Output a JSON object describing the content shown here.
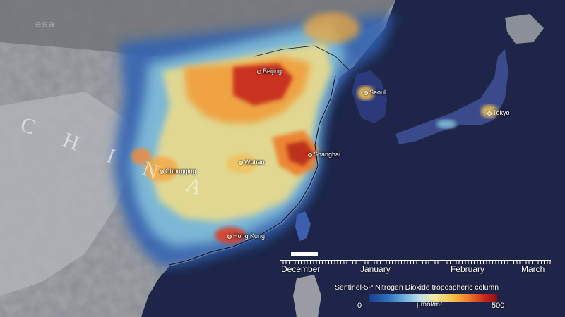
{
  "map": {
    "watermark": "esa",
    "country_label": "CHINA",
    "cities": [
      {
        "name": "Beijing"
      },
      {
        "name": "Seoul"
      },
      {
        "name": "Tokyo"
      },
      {
        "name": "Shanghai"
      },
      {
        "name": "Wuhan"
      },
      {
        "name": "Chongqing"
      },
      {
        "name": "Hong Kong"
      }
    ]
  },
  "timeline": {
    "months": [
      "December",
      "January",
      "February",
      "March"
    ],
    "progress": 0.1
  },
  "legend": {
    "title": "Sentinel-5P Nitrogen Dioxide tropospheric column",
    "min": "0",
    "unit": "µmol/m²",
    "max": "500",
    "colors": [
      "#1d3a8a",
      "#2d6fbf",
      "#6fb1dd",
      "#bde3e6",
      "#f3e9a4",
      "#f6c04a",
      "#ec7a2a",
      "#c82a1c",
      "#8a0f0f"
    ]
  }
}
